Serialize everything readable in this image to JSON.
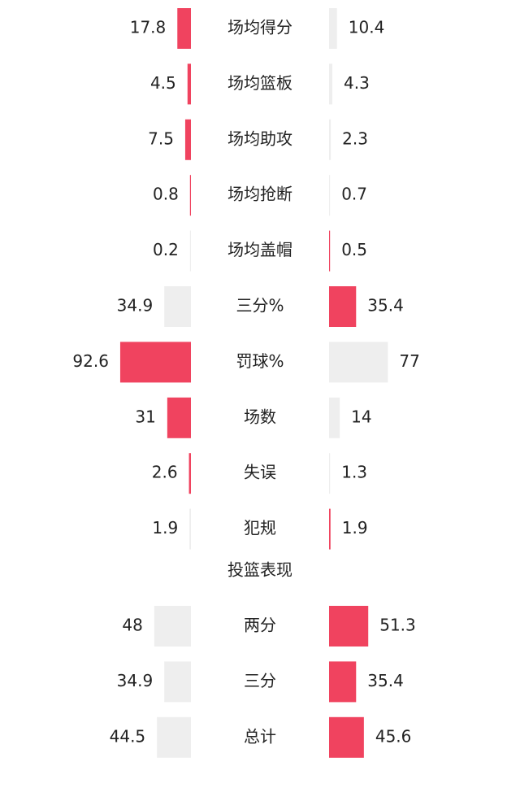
{
  "sections": [
    {
      "rows": [
        {
          "label": "场均得分",
          "left": {
            "value": 17.8,
            "color": "#f0435f"
          },
          "right": {
            "value": 10.4,
            "color": "#eeeeee"
          }
        },
        {
          "label": "场均篮板",
          "left": {
            "value": 4.5,
            "color": "#f0435f"
          },
          "right": {
            "value": 4.3,
            "color": "#eeeeee"
          }
        },
        {
          "label": "场均助攻",
          "left": {
            "value": 7.5,
            "color": "#f0435f"
          },
          "right": {
            "value": 2.3,
            "color": "#eeeeee"
          }
        },
        {
          "label": "场均抢断",
          "left": {
            "value": 0.8,
            "color": "#f0435f"
          },
          "right": {
            "value": 0.7,
            "color": "#eeeeee"
          }
        },
        {
          "label": "场均盖帽",
          "left": {
            "value": 0.2,
            "color": "#eeeeee"
          },
          "right": {
            "value": 0.5,
            "color": "#f0435f"
          }
        },
        {
          "label": "三分%",
          "left": {
            "value": 34.9,
            "color": "#eeeeee"
          },
          "right": {
            "value": 35.4,
            "color": "#f0435f"
          }
        },
        {
          "label": "罚球%",
          "left": {
            "value": 92.6,
            "color": "#f0435f"
          },
          "right": {
            "value": 77,
            "color": "#eeeeee"
          }
        },
        {
          "label": "场数",
          "left": {
            "value": 31,
            "color": "#f0435f"
          },
          "right": {
            "value": 14,
            "color": "#eeeeee"
          }
        },
        {
          "label": "失误",
          "left": {
            "value": 2.6,
            "color": "#f0435f"
          },
          "right": {
            "value": 1.3,
            "color": "#eeeeee"
          }
        },
        {
          "label": "犯规",
          "left": {
            "value": 1.9,
            "color": "#eeeeee"
          },
          "right": {
            "value": 1.9,
            "color": "#f0435f"
          }
        }
      ]
    },
    {
      "title": "投篮表现",
      "rows": [
        {
          "label": "两分",
          "left": {
            "value": 48,
            "color": "#eeeeee"
          },
          "right": {
            "value": 51.3,
            "color": "#f0435f"
          }
        },
        {
          "label": "三分",
          "left": {
            "value": 34.9,
            "color": "#eeeeee"
          },
          "right": {
            "value": 35.4,
            "color": "#f0435f"
          }
        },
        {
          "label": "总计",
          "left": {
            "value": 44.5,
            "color": "#eeeeee"
          },
          "right": {
            "value": 45.6,
            "color": "#f0435f"
          }
        }
      ]
    }
  ]
}
